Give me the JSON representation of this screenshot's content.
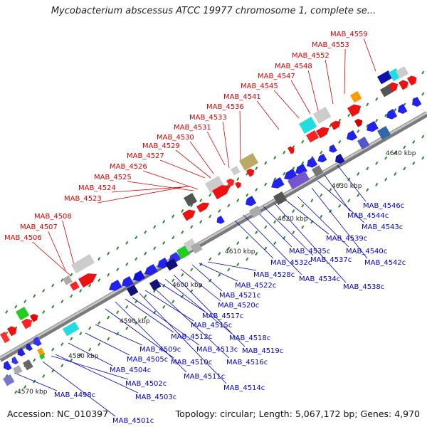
{
  "title": "Mycobacterium abscessus ATCC 19977 chromosome 1, complete se...",
  "footer": {
    "accession": "Accession: NC_010397",
    "topology": "Topology: circular; Length: 5,067,172 bp; Genes: 4,970"
  },
  "colors": {
    "forward_label": "#dd0000",
    "reverse_label": "#0000cc",
    "backbone": "#999999",
    "tick": "#2a8a2a"
  },
  "scale_labels": [
    "4570 kbp",
    "4580 kbp",
    "4590 kbp",
    "4600 kbp",
    "4610 kbp",
    "4620 kbp",
    "4630 kbp",
    "4640 kbp"
  ],
  "forward_genes": [
    "MAB_4506",
    "MAB_4507",
    "MAB_4508",
    "MAB_4523",
    "MAB_4524",
    "MAB_4525",
    "MAB_4526",
    "MAB_4527",
    "MAB_4529",
    "MAB_4530",
    "MAB_4531",
    "MAB_4533",
    "MAB_4536",
    "MAB_4541",
    "MAB_4545",
    "MAB_4547",
    "MAB_4548",
    "MAB_4552",
    "MAB_4553",
    "MAB_4559"
  ],
  "reverse_genes": [
    "MAB_4498c",
    "MAB_4501c",
    "MAB_4502c",
    "MAB_4503c",
    "MAB_4504c",
    "MAB_4505c",
    "MAB_4509c",
    "MAB_4510c",
    "MAB_4511c",
    "MAB_4512c",
    "MAB_4513c",
    "MAB_4514c",
    "MAB_4515c",
    "MAB_4516c",
    "MAB_4517c",
    "MAB_4518c",
    "MAB_4519c",
    "MAB_4520c",
    "MAB_4521c",
    "MAB_4522c",
    "MAB_4528c",
    "MAB_4532c",
    "MAB_4534c",
    "MAB_4535c",
    "MAB_4537c",
    "MAB_4538c",
    "MAB_4539c",
    "MAB_4540c",
    "MAB_4542c",
    "MAB_4543c",
    "MAB_4544c",
    "MAB_4546c"
  ]
}
